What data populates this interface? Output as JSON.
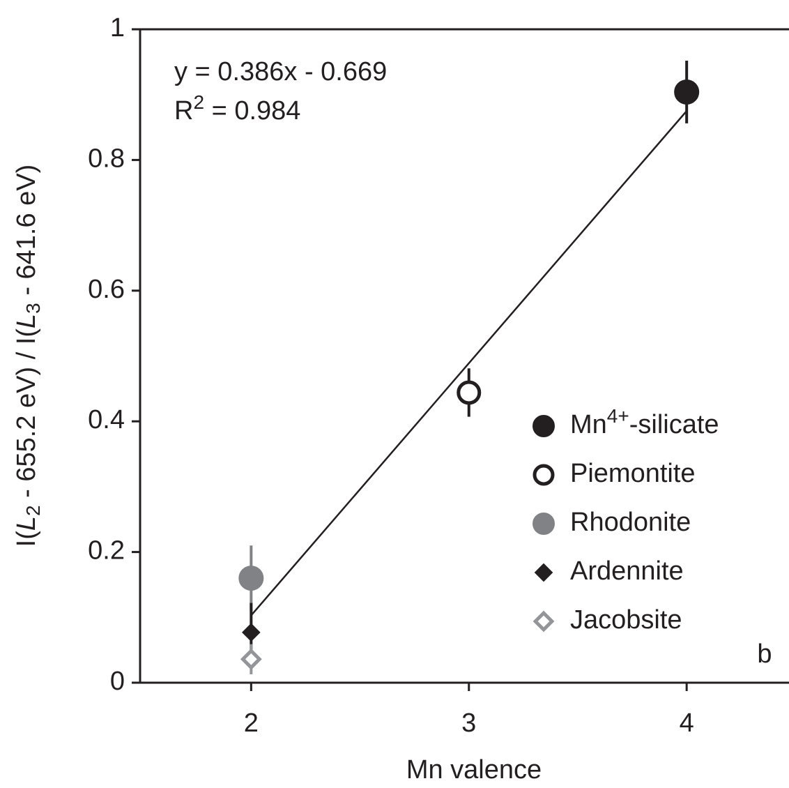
{
  "chart_data": {
    "type": "scatter",
    "x_label": "Mn valence",
    "y_label_parts": [
      "I(",
      "L",
      "2",
      " - 655.2 eV) / I(",
      "L",
      "3",
      " - 641.6 eV)"
    ],
    "annotations": [
      {
        "text": "y = 0.386x - 0.669"
      },
      {
        "text": "R2 = 0.984",
        "superscript": "2"
      }
    ],
    "panel_label": "b",
    "xlim": [
      1.49,
      4.47
    ],
    "ylim": [
      0,
      1
    ],
    "xticks": [
      2,
      3,
      4
    ],
    "yticks": [
      0,
      0.2,
      0.4,
      0.6,
      0.8,
      1
    ],
    "legend": "lower right",
    "fit_line": {
      "x": [
        2,
        4
      ],
      "values": [
        0.103,
        0.875
      ],
      "color": "#231f20"
    },
    "series": [
      {
        "name": "Mn4+-silicate",
        "superscript": "4+",
        "marker": "circle",
        "filled": true,
        "color": "#231f20",
        "x": [
          4
        ],
        "values": [
          0.904
        ],
        "errors": [
          0.048
        ]
      },
      {
        "name": "Piemontite",
        "marker": "circle",
        "filled": false,
        "color": "#231f20",
        "x": [
          3
        ],
        "values": [
          0.444
        ],
        "errors": [
          0.037
        ]
      },
      {
        "name": "Rhodonite",
        "marker": "circle",
        "filled": true,
        "color": "#808285",
        "x": [
          2
        ],
        "values": [
          0.16
        ],
        "errors": [
          0.05
        ]
      },
      {
        "name": "Ardennite",
        "marker": "diamond",
        "filled": true,
        "color": "#231f20",
        "x": [
          2
        ],
        "values": [
          0.077
        ],
        "errors": [
          0.045
        ]
      },
      {
        "name": "Jacobsite",
        "marker": "diamond",
        "filled": false,
        "color": "#939598",
        "x": [
          2
        ],
        "values": [
          0.036
        ],
        "errors": [
          0.023
        ]
      }
    ]
  }
}
